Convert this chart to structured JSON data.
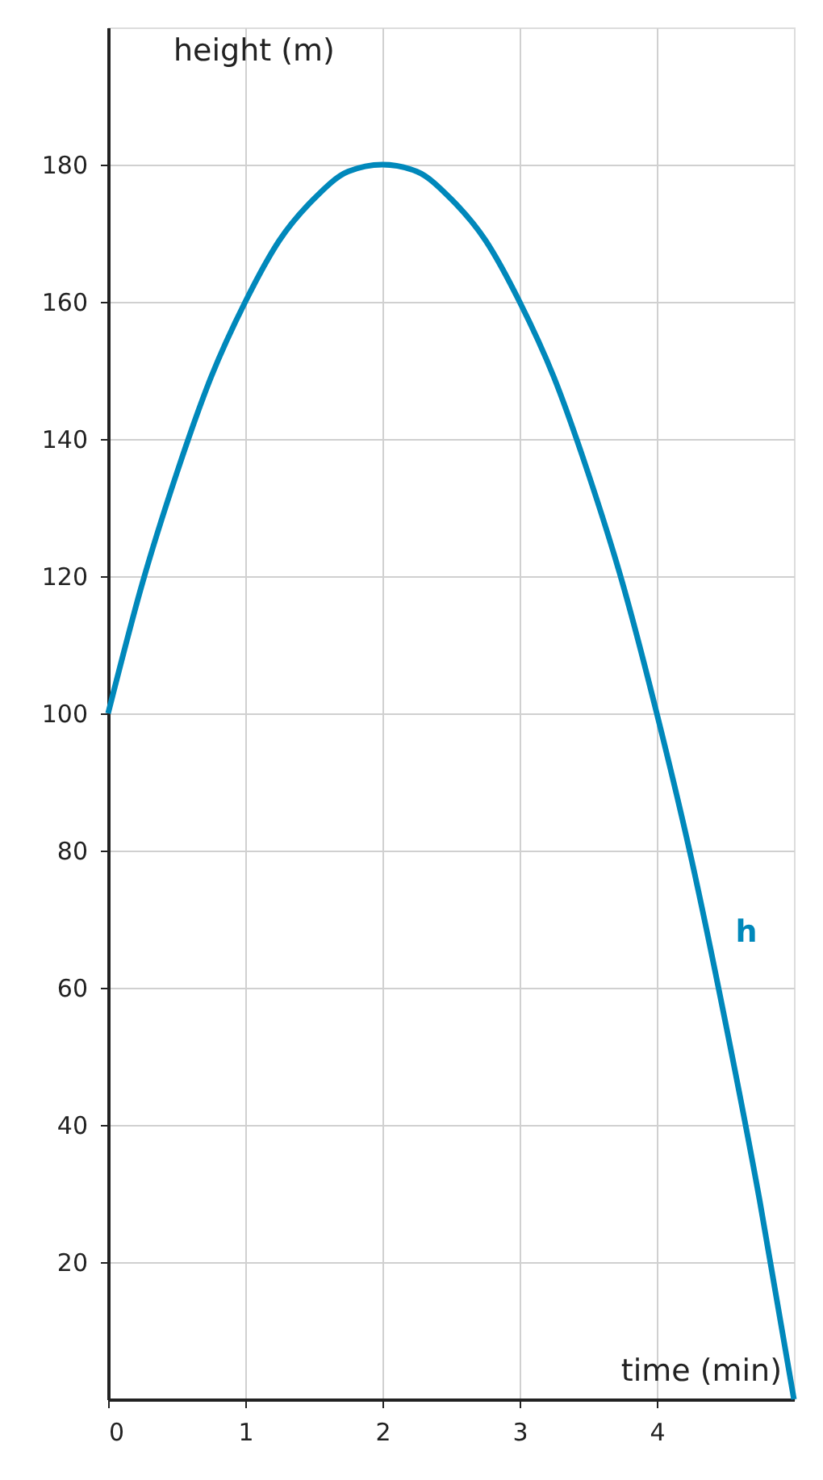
{
  "chart_data": {
    "type": "line",
    "xlabel": "time (min)",
    "ylabel": "height (m)",
    "x": [
      0,
      0.25,
      0.5,
      0.75,
      1,
      1.25,
      1.5,
      1.75,
      2,
      2.25,
      2.5,
      2.75,
      3,
      3.25,
      3.5,
      3.75,
      4,
      4.25,
      4.5,
      4.75,
      5
    ],
    "series": [
      {
        "name": "h",
        "color": "#0088bb",
        "values": [
          100,
          119,
          135,
          149,
          160,
          169,
          175,
          179,
          180,
          179,
          175,
          169,
          160,
          149,
          135,
          119,
          100,
          79,
          55,
          29,
          0
        ]
      }
    ],
    "xlim": [
      0,
      5
    ],
    "ylim": [
      0,
      200
    ],
    "xticks": [
      0,
      1,
      2,
      3,
      4
    ],
    "yticks": [
      20,
      40,
      60,
      80,
      100,
      120,
      140,
      160,
      180
    ],
    "grid": true,
    "marker": "none",
    "line_style": "solid"
  }
}
